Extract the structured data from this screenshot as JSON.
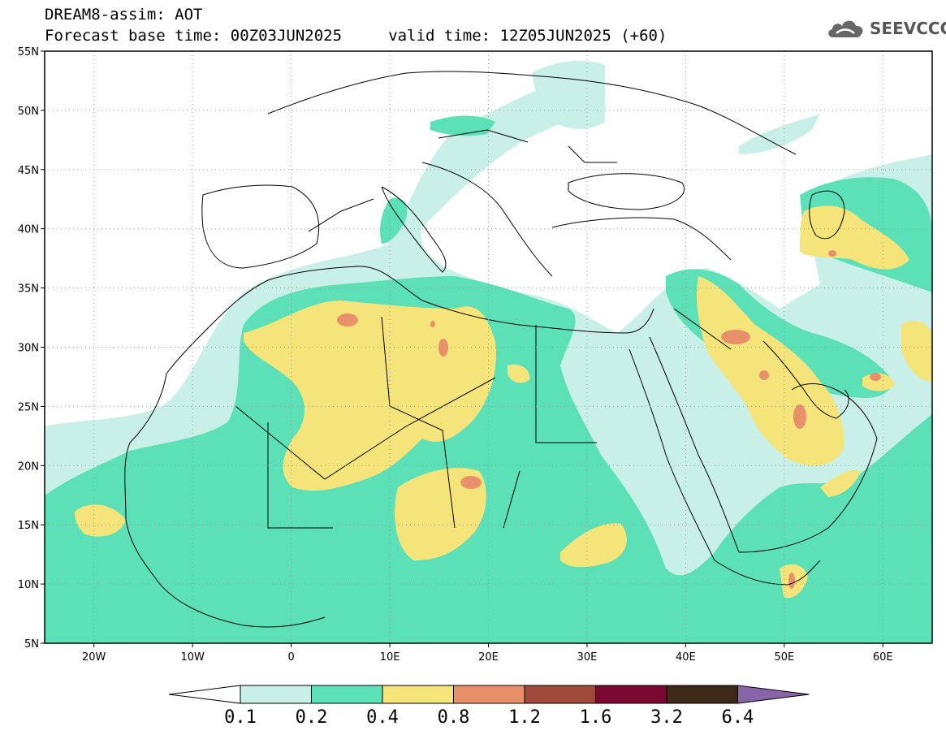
{
  "title": {
    "line1": "DREAM8-assim: AOT",
    "line2": "Forecast base time: 00Z03JUN2025     valid time: 12Z05JUN2025 (+60)"
  },
  "logo": {
    "text": "SEEVCCC",
    "icon": "cloud-icon"
  },
  "map": {
    "lat_range": [
      5,
      55
    ],
    "lon_range": [
      -25,
      65
    ],
    "lat_ticks": [
      {
        "value": 55,
        "label": "55N"
      },
      {
        "value": 50,
        "label": "50N"
      },
      {
        "value": 45,
        "label": "45N"
      },
      {
        "value": 40,
        "label": "40N"
      },
      {
        "value": 35,
        "label": "35N"
      },
      {
        "value": 30,
        "label": "30N"
      },
      {
        "value": 25,
        "label": "25N"
      },
      {
        "value": 20,
        "label": "20N"
      },
      {
        "value": 15,
        "label": "15N"
      },
      {
        "value": 10,
        "label": "10N"
      },
      {
        "value": 5,
        "label": "5N"
      }
    ],
    "lon_ticks": [
      {
        "value": -20,
        "label": "20W"
      },
      {
        "value": -10,
        "label": "10W"
      },
      {
        "value": 0,
        "label": "0"
      },
      {
        "value": 10,
        "label": "10E"
      },
      {
        "value": 20,
        "label": "20E"
      },
      {
        "value": 30,
        "label": "30E"
      },
      {
        "value": 40,
        "label": "40E"
      },
      {
        "value": 50,
        "label": "50E"
      },
      {
        "value": 60,
        "label": "60E"
      }
    ]
  },
  "colorbar": {
    "levels": [
      "0.1",
      "0.2",
      "0.4",
      "0.8",
      "1.2",
      "1.6",
      "3.2",
      "6.4"
    ],
    "colors": [
      "#ffffff",
      "#c8f0e8",
      "#5ce0b8",
      "#f5e47a",
      "#e8906a",
      "#a04a3c",
      "#7a0830",
      "#3e2818",
      "#8a64a8"
    ]
  }
}
